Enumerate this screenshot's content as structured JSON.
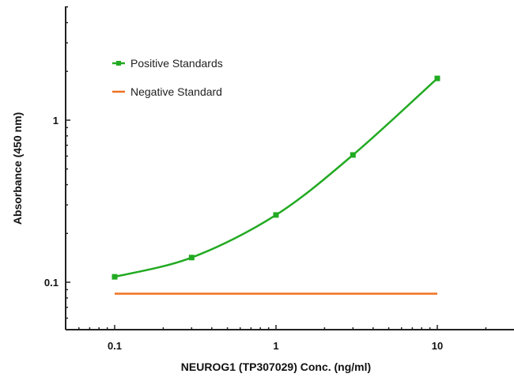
{
  "chart_data": {
    "type": "line",
    "title": "",
    "xlabel": "NEUROG1 (TP307029) Conc. (ng/ml)",
    "ylabel": "Absorbance (450 nm)",
    "xscale": "log",
    "yscale": "log",
    "xlim": [
      0.05,
      30
    ],
    "ylim": [
      0.051,
      5
    ],
    "x_ticks": [
      "0.1",
      "1",
      "10"
    ],
    "y_ticks": [
      "0.1",
      "1"
    ],
    "grid": false,
    "legend_position": "upper left",
    "series": [
      {
        "name": "Positive Standards",
        "color": "#22aa22",
        "marker": "square",
        "x": [
          0.1,
          0.3,
          1,
          3,
          10
        ],
        "values": [
          0.108,
          0.142,
          0.26,
          0.61,
          1.81
        ]
      },
      {
        "name": "Negative Standard",
        "color": "#f07020",
        "marker": "none",
        "x": [
          0.1,
          10
        ],
        "values": [
          0.085,
          0.085
        ]
      }
    ]
  },
  "legend": {
    "positive_label": "Positive Standards",
    "negative_label": "Negative Standard"
  },
  "axes": {
    "x_title": "NEUROG1 (TP307029) Conc. (ng/ml)",
    "y_title": "Absorbance (450 nm)",
    "x_tick_labels": [
      "0.1",
      "1",
      "10"
    ],
    "y_tick_labels": [
      "0.1",
      "1"
    ]
  }
}
